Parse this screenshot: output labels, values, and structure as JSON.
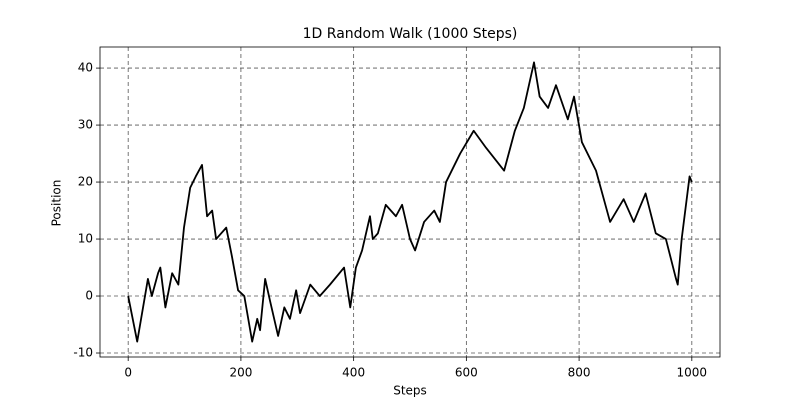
{
  "chart_data": {
    "type": "line",
    "title": "1D Random Walk (1000 Steps)",
    "x_label": "Steps",
    "y_label": "Position",
    "x": [
      0,
      16,
      35,
      42,
      53,
      57,
      66,
      78,
      89,
      99,
      110,
      120,
      131,
      140,
      149,
      156,
      174,
      184,
      195,
      206,
      220,
      229,
      234,
      243,
      252,
      266,
      277,
      287,
      298,
      305,
      323,
      340,
      358,
      383,
      394,
      404,
      415,
      429,
      434,
      443,
      457,
      475,
      486,
      500,
      509,
      525,
      543,
      553,
      564,
      589,
      613,
      635,
      667,
      686,
      702,
      720,
      730,
      745,
      759,
      780,
      791,
      805,
      830,
      855,
      879,
      897,
      918,
      936,
      954,
      972,
      975,
      982,
      996,
      1000
    ],
    "series": [
      {
        "name": "Position",
        "color": "#000000",
        "values": [
          0,
          -8,
          3,
          0,
          4,
          5,
          -2,
          4,
          2,
          12,
          19,
          21,
          23,
          14,
          15,
          10,
          12,
          7,
          1,
          0,
          -8,
          -4,
          -6,
          3,
          -1,
          -7,
          -2,
          -4,
          1,
          -3,
          2,
          0,
          2,
          5,
          -2,
          5,
          8,
          14,
          10,
          11,
          16,
          14,
          16,
          10,
          8,
          13,
          15,
          13,
          20,
          25,
          29,
          26,
          22,
          29,
          33,
          41,
          35,
          33,
          37,
          31,
          35,
          27,
          22,
          13,
          17,
          13,
          18,
          11,
          10,
          3,
          2,
          10,
          21,
          20
        ]
      }
    ],
    "xlim": [
      -50,
      1050
    ],
    "xticks": [
      0,
      200,
      400,
      600,
      800,
      1000
    ],
    "ylim": [
      -10.7,
      43.7
    ],
    "yticks": [
      -10,
      0,
      10,
      20,
      30,
      40
    ],
    "grid": true
  }
}
